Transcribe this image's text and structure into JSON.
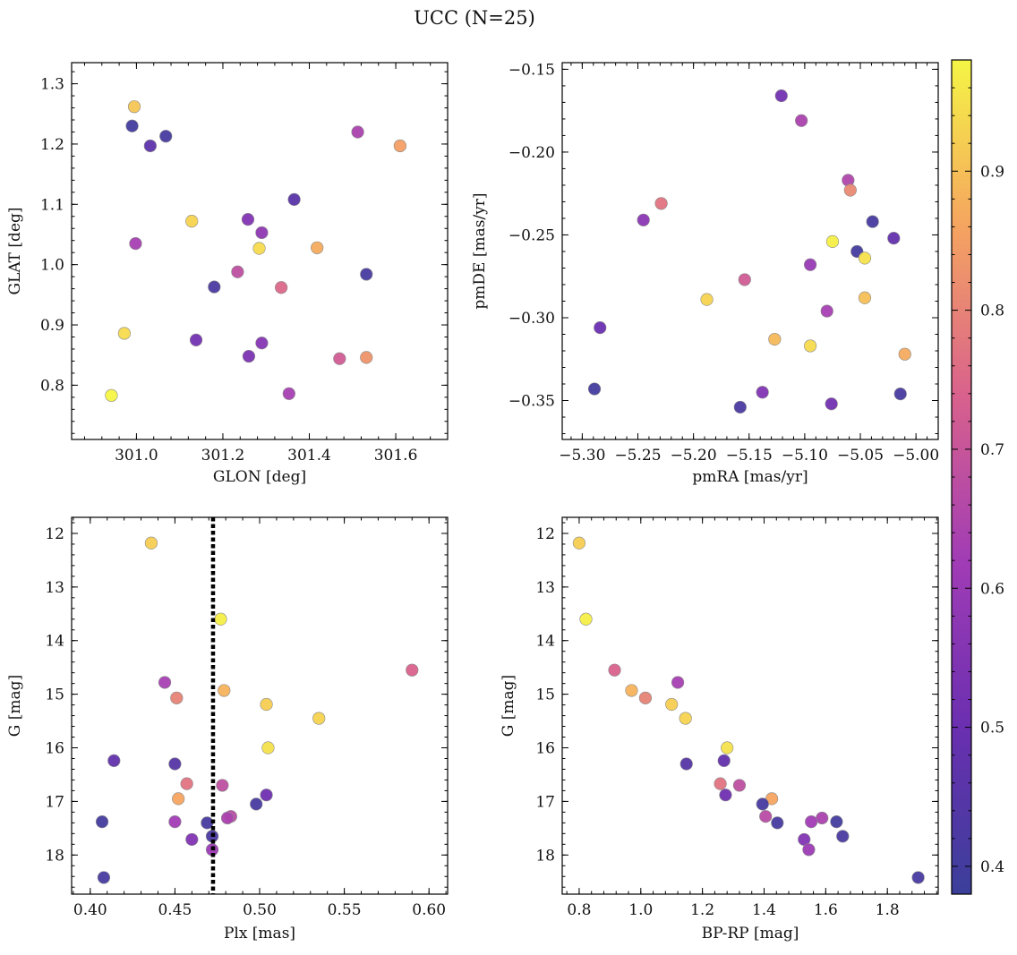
{
  "figure": {
    "title": "UCC (N=25)"
  },
  "colorbar": {
    "cmap": "plasma",
    "range": [
      0.38,
      0.98
    ],
    "ticks": [
      0.4,
      0.5,
      0.6,
      0.7,
      0.8,
      0.9
    ],
    "tick_labels": [
      "0.4",
      "0.5",
      "0.6",
      "0.7",
      "0.8",
      "0.9"
    ]
  },
  "chart_data": [
    {
      "type": "scatter",
      "id": "lonlat",
      "title": "",
      "xlabel": "GLON [deg]",
      "ylabel": "GLAT [deg]",
      "xlim": [
        300.85,
        301.72
      ],
      "ylim": [
        0.71,
        1.335
      ],
      "y_inverted": false,
      "xticks": [
        301.0,
        301.2,
        301.4,
        301.6
      ],
      "xtick_labels": [
        "301.0",
        "301.2",
        "301.4",
        "301.6"
      ],
      "yticks": [
        0.8,
        0.9,
        1.0,
        1.1,
        1.2,
        1.3
      ],
      "ytick_labels": [
        "0.8",
        "0.9",
        "1.0",
        "1.1",
        "1.2",
        "1.3"
      ],
      "points": [
        {
          "x": 300.995,
          "y": 1.262,
          "c": 0.91
        },
        {
          "x": 300.99,
          "y": 1.23,
          "c": 0.4
        },
        {
          "x": 301.068,
          "y": 1.213,
          "c": 0.41
        },
        {
          "x": 301.032,
          "y": 1.197,
          "c": 0.47
        },
        {
          "x": 301.512,
          "y": 1.22,
          "c": 0.64
        },
        {
          "x": 301.61,
          "y": 1.197,
          "c": 0.85
        },
        {
          "x": 301.365,
          "y": 1.108,
          "c": 0.46
        },
        {
          "x": 301.258,
          "y": 1.075,
          "c": 0.55
        },
        {
          "x": 301.128,
          "y": 1.072,
          "c": 0.93
        },
        {
          "x": 301.29,
          "y": 1.053,
          "c": 0.58
        },
        {
          "x": 300.998,
          "y": 1.035,
          "c": 0.63
        },
        {
          "x": 301.284,
          "y": 1.027,
          "c": 0.94
        },
        {
          "x": 301.418,
          "y": 1.028,
          "c": 0.87
        },
        {
          "x": 301.234,
          "y": 0.988,
          "c": 0.68
        },
        {
          "x": 301.532,
          "y": 0.984,
          "c": 0.41
        },
        {
          "x": 301.18,
          "y": 0.963,
          "c": 0.42
        },
        {
          "x": 301.335,
          "y": 0.962,
          "c": 0.75
        },
        {
          "x": 300.972,
          "y": 0.886,
          "c": 0.94
        },
        {
          "x": 301.138,
          "y": 0.875,
          "c": 0.52
        },
        {
          "x": 301.29,
          "y": 0.87,
          "c": 0.56
        },
        {
          "x": 301.26,
          "y": 0.848,
          "c": 0.54
        },
        {
          "x": 301.47,
          "y": 0.844,
          "c": 0.72
        },
        {
          "x": 301.532,
          "y": 0.846,
          "c": 0.83
        },
        {
          "x": 301.353,
          "y": 0.786,
          "c": 0.63
        },
        {
          "x": 300.942,
          "y": 0.783,
          "c": 0.98
        }
      ]
    },
    {
      "type": "scatter",
      "id": "pm",
      "title": "",
      "xlabel": "pmRA [mas/yr]",
      "ylabel": "pmDE [mas/yr]",
      "xlim": [
        -5.318,
        -4.98
      ],
      "ylim": [
        -0.3735,
        -0.146
      ],
      "y_inverted": false,
      "xticks": [
        -5.3,
        -5.25,
        -5.2,
        -5.15,
        -5.1,
        -5.05,
        -5.0
      ],
      "xtick_labels": [
        "−5.30",
        "−5.25",
        "−5.20",
        "−5.15",
        "−5.10",
        "−5.05",
        "−5.00"
      ],
      "yticks": [
        -0.35,
        -0.3,
        -0.25,
        -0.2,
        -0.15
      ],
      "ytick_labels": [
        "−0.35",
        "−0.30",
        "−0.25",
        "−0.20",
        "−0.15"
      ],
      "points": [
        {
          "x": -5.121,
          "y": -0.166,
          "c": 0.52
        },
        {
          "x": -5.103,
          "y": -0.181,
          "c": 0.64
        },
        {
          "x": -5.061,
          "y": -0.217,
          "c": 0.65
        },
        {
          "x": -5.059,
          "y": -0.223,
          "c": 0.81
        },
        {
          "x": -5.229,
          "y": -0.231,
          "c": 0.77
        },
        {
          "x": -5.245,
          "y": -0.241,
          "c": 0.57
        },
        {
          "x": -5.039,
          "y": -0.242,
          "c": 0.41
        },
        {
          "x": -5.02,
          "y": -0.252,
          "c": 0.48
        },
        {
          "x": -5.075,
          "y": -0.254,
          "c": 0.97
        },
        {
          "x": -5.053,
          "y": -0.26,
          "c": 0.4
        },
        {
          "x": -5.046,
          "y": -0.264,
          "c": 0.95
        },
        {
          "x": -5.095,
          "y": -0.268,
          "c": 0.6
        },
        {
          "x": -5.154,
          "y": -0.277,
          "c": 0.72
        },
        {
          "x": -5.046,
          "y": -0.288,
          "c": 0.9
        },
        {
          "x": -5.188,
          "y": -0.289,
          "c": 0.93
        },
        {
          "x": -5.08,
          "y": -0.296,
          "c": 0.63
        },
        {
          "x": -5.284,
          "y": -0.306,
          "c": 0.5
        },
        {
          "x": -5.127,
          "y": -0.313,
          "c": 0.89
        },
        {
          "x": -5.095,
          "y": -0.317,
          "c": 0.94
        },
        {
          "x": -5.01,
          "y": -0.322,
          "c": 0.87
        },
        {
          "x": -5.289,
          "y": -0.343,
          "c": 0.4
        },
        {
          "x": -5.014,
          "y": -0.346,
          "c": 0.41
        },
        {
          "x": -5.138,
          "y": -0.345,
          "c": 0.55
        },
        {
          "x": -5.158,
          "y": -0.354,
          "c": 0.42
        },
        {
          "x": -5.076,
          "y": -0.352,
          "c": 0.52
        }
      ]
    },
    {
      "type": "scatter",
      "id": "plx",
      "title": "",
      "xlabel": "Plx [mas]",
      "ylabel": "G [mag]",
      "xlim": [
        0.389,
        0.611
      ],
      "ylim": [
        11.7,
        18.73
      ],
      "y_inverted": true,
      "xticks": [
        0.4,
        0.45,
        0.5,
        0.55,
        0.6
      ],
      "xtick_labels": [
        "0.40",
        "0.45",
        "0.50",
        "0.55",
        "0.60"
      ],
      "yticks": [
        12,
        13,
        14,
        15,
        16,
        17,
        18
      ],
      "ytick_labels": [
        "12",
        "13",
        "14",
        "15",
        "16",
        "17",
        "18"
      ],
      "vline": {
        "x": 0.4725,
        "style": "dotted"
      },
      "points": [
        {
          "x": 0.436,
          "y": 12.18,
          "c": 0.92
        },
        {
          "x": 0.477,
          "y": 13.6,
          "c": 0.97
        },
        {
          "x": 0.59,
          "y": 14.55,
          "c": 0.74
        },
        {
          "x": 0.444,
          "y": 14.78,
          "c": 0.63
        },
        {
          "x": 0.479,
          "y": 14.93,
          "c": 0.88
        },
        {
          "x": 0.451,
          "y": 15.07,
          "c": 0.8
        },
        {
          "x": 0.504,
          "y": 15.19,
          "c": 0.92
        },
        {
          "x": 0.535,
          "y": 15.45,
          "c": 0.93
        },
        {
          "x": 0.505,
          "y": 16.0,
          "c": 0.95
        },
        {
          "x": 0.414,
          "y": 16.24,
          "c": 0.48
        },
        {
          "x": 0.45,
          "y": 16.3,
          "c": 0.45
        },
        {
          "x": 0.457,
          "y": 16.67,
          "c": 0.77
        },
        {
          "x": 0.478,
          "y": 16.7,
          "c": 0.68
        },
        {
          "x": 0.504,
          "y": 16.88,
          "c": 0.51
        },
        {
          "x": 0.452,
          "y": 16.95,
          "c": 0.86
        },
        {
          "x": 0.498,
          "y": 17.05,
          "c": 0.41
        },
        {
          "x": 0.483,
          "y": 17.28,
          "c": 0.67
        },
        {
          "x": 0.481,
          "y": 17.31,
          "c": 0.64
        },
        {
          "x": 0.407,
          "y": 17.38,
          "c": 0.4
        },
        {
          "x": 0.45,
          "y": 17.38,
          "c": 0.62
        },
        {
          "x": 0.469,
          "y": 17.4,
          "c": 0.41
        },
        {
          "x": 0.472,
          "y": 17.65,
          "c": 0.42
        },
        {
          "x": 0.46,
          "y": 17.71,
          "c": 0.55
        },
        {
          "x": 0.472,
          "y": 17.9,
          "c": 0.61
        },
        {
          "x": 0.408,
          "y": 18.42,
          "c": 0.41
        }
      ]
    },
    {
      "type": "scatter",
      "id": "cmd",
      "title": "",
      "xlabel": "BP-RP [mag]",
      "ylabel": "G [mag]",
      "xlim": [
        0.745,
        1.965
      ],
      "ylim": [
        11.7,
        18.73
      ],
      "y_inverted": true,
      "xticks": [
        0.8,
        1.0,
        1.2,
        1.4,
        1.6,
        1.8
      ],
      "xtick_labels": [
        "0.8",
        "1.0",
        "1.2",
        "1.4",
        "1.6",
        "1.8"
      ],
      "yticks": [
        12,
        13,
        14,
        15,
        16,
        17,
        18
      ],
      "ytick_labels": [
        "12",
        "13",
        "14",
        "15",
        "16",
        "17",
        "18"
      ],
      "points": [
        {
          "x": 0.8,
          "y": 12.18,
          "c": 0.92
        },
        {
          "x": 0.822,
          "y": 13.6,
          "c": 0.97
        },
        {
          "x": 0.915,
          "y": 14.55,
          "c": 0.74
        },
        {
          "x": 1.12,
          "y": 14.78,
          "c": 0.63
        },
        {
          "x": 0.97,
          "y": 14.93,
          "c": 0.88
        },
        {
          "x": 1.015,
          "y": 15.07,
          "c": 0.8
        },
        {
          "x": 1.1,
          "y": 15.19,
          "c": 0.92
        },
        {
          "x": 1.145,
          "y": 15.45,
          "c": 0.93
        },
        {
          "x": 1.28,
          "y": 16.0,
          "c": 0.95
        },
        {
          "x": 1.27,
          "y": 16.24,
          "c": 0.48
        },
        {
          "x": 1.148,
          "y": 16.3,
          "c": 0.45
        },
        {
          "x": 1.258,
          "y": 16.67,
          "c": 0.77
        },
        {
          "x": 1.32,
          "y": 16.7,
          "c": 0.68
        },
        {
          "x": 1.275,
          "y": 16.88,
          "c": 0.51
        },
        {
          "x": 1.425,
          "y": 16.95,
          "c": 0.86
        },
        {
          "x": 1.395,
          "y": 17.05,
          "c": 0.41
        },
        {
          "x": 1.405,
          "y": 17.28,
          "c": 0.67
        },
        {
          "x": 1.588,
          "y": 17.31,
          "c": 0.64
        },
        {
          "x": 1.635,
          "y": 17.38,
          "c": 0.4
        },
        {
          "x": 1.553,
          "y": 17.38,
          "c": 0.62
        },
        {
          "x": 1.443,
          "y": 17.4,
          "c": 0.41
        },
        {
          "x": 1.655,
          "y": 17.65,
          "c": 0.42
        },
        {
          "x": 1.53,
          "y": 17.71,
          "c": 0.55
        },
        {
          "x": 1.545,
          "y": 17.9,
          "c": 0.61
        },
        {
          "x": 1.9,
          "y": 18.42,
          "c": 0.41
        }
      ]
    }
  ]
}
